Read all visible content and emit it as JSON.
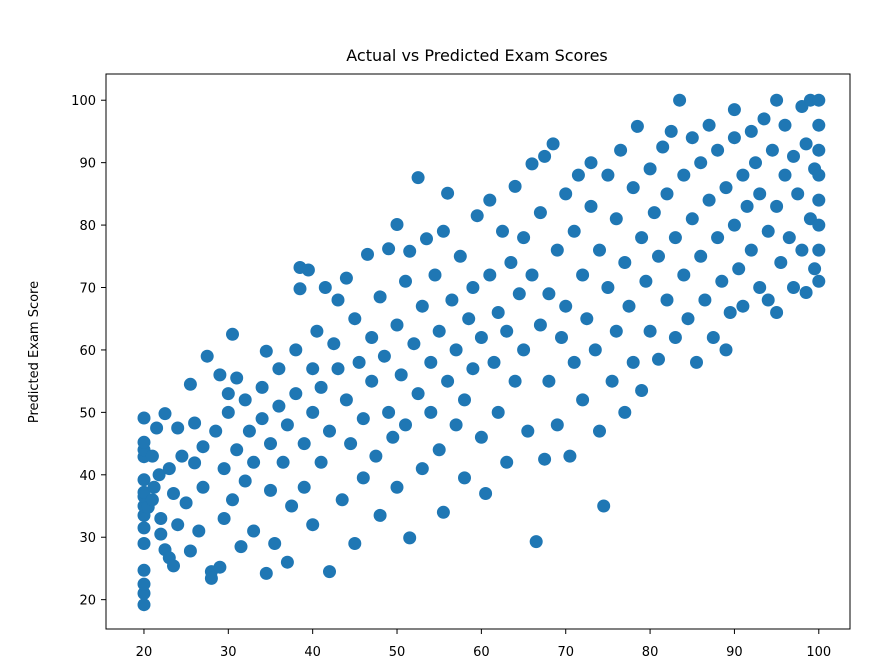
{
  "chart_data": {
    "type": "scatter",
    "title": "Actual vs Predicted Exam Scores",
    "xlabel": "",
    "ylabel": "Predicted Exam Score",
    "xlim": [
      15.5,
      103.7
    ],
    "ylim": [
      15.3,
      104.2
    ],
    "xticks": [
      20,
      30,
      40,
      50,
      60,
      70,
      80,
      90,
      100
    ],
    "yticks": [
      20,
      30,
      40,
      50,
      60,
      70,
      80,
      90,
      100
    ],
    "grid": false,
    "color": "#1f77b4",
    "series": [
      {
        "points": [
          [
            20,
            19.2
          ],
          [
            20,
            21.0
          ],
          [
            20,
            22.5
          ],
          [
            20,
            24.7
          ],
          [
            20,
            29.0
          ],
          [
            20,
            31.5
          ],
          [
            20,
            33.5
          ],
          [
            20,
            35.0
          ],
          [
            20,
            36.5
          ],
          [
            20,
            37.2
          ],
          [
            20,
            39.2
          ],
          [
            20,
            42.9
          ],
          [
            20,
            44.0
          ],
          [
            20,
            45.2
          ],
          [
            20,
            49.1
          ],
          [
            20.5,
            34.8
          ],
          [
            21,
            36.0
          ],
          [
            21,
            43.0
          ],
          [
            21.2,
            38.0
          ],
          [
            21.5,
            47.5
          ],
          [
            21.8,
            40.0
          ],
          [
            22,
            30.5
          ],
          [
            22,
            33.0
          ],
          [
            22.5,
            28.0
          ],
          [
            22.5,
            49.8
          ],
          [
            23,
            41.0
          ],
          [
            23,
            26.7
          ],
          [
            23.5,
            25.4
          ],
          [
            23.5,
            37.0
          ],
          [
            24,
            47.5
          ],
          [
            24,
            32.0
          ],
          [
            24.5,
            43.0
          ],
          [
            25,
            35.5
          ],
          [
            25.5,
            27.8
          ],
          [
            25.5,
            54.5
          ],
          [
            26,
            41.9
          ],
          [
            26,
            48.3
          ],
          [
            26.5,
            31.0
          ],
          [
            27,
            38.0
          ],
          [
            27,
            44.5
          ],
          [
            27.5,
            59.0
          ],
          [
            28,
            24.5
          ],
          [
            28,
            23.4
          ],
          [
            28.5,
            47.0
          ],
          [
            29,
            25.2
          ],
          [
            29,
            56.0
          ],
          [
            29.5,
            33.0
          ],
          [
            29.5,
            41.0
          ],
          [
            30,
            50.0
          ],
          [
            30,
            53.0
          ],
          [
            30.5,
            62.5
          ],
          [
            30.5,
            36.0
          ],
          [
            31,
            44.0
          ],
          [
            31,
            55.5
          ],
          [
            31.5,
            28.5
          ],
          [
            32,
            52.0
          ],
          [
            32,
            39.0
          ],
          [
            32.5,
            47.0
          ],
          [
            33,
            42.0
          ],
          [
            33,
            31.0
          ],
          [
            34,
            49.0
          ],
          [
            34,
            54.0
          ],
          [
            34.5,
            59.8
          ],
          [
            34.5,
            24.2
          ],
          [
            35,
            45.0
          ],
          [
            35,
            37.5
          ],
          [
            35.5,
            29.0
          ],
          [
            36,
            51.0
          ],
          [
            36,
            57.0
          ],
          [
            36.5,
            42.0
          ],
          [
            37,
            26.0
          ],
          [
            37,
            48.0
          ],
          [
            37.5,
            35.0
          ],
          [
            38,
            60.0
          ],
          [
            38,
            53.0
          ],
          [
            38.5,
            69.8
          ],
          [
            38.5,
            73.2
          ],
          [
            39,
            45.0
          ],
          [
            39,
            38.0
          ],
          [
            39.5,
            72.8
          ],
          [
            40,
            57.0
          ],
          [
            40,
            50.0
          ],
          [
            40,
            32.0
          ],
          [
            40.5,
            63.0
          ],
          [
            41,
            42.0
          ],
          [
            41,
            54.0
          ],
          [
            41.5,
            70.0
          ],
          [
            42,
            24.5
          ],
          [
            42,
            47.0
          ],
          [
            42.5,
            61.0
          ],
          [
            43,
            57.0
          ],
          [
            43,
            68.0
          ],
          [
            43.5,
            36.0
          ],
          [
            44,
            52.0
          ],
          [
            44,
            71.5
          ],
          [
            44.5,
            45.0
          ],
          [
            45,
            65.0
          ],
          [
            45,
            29.0
          ],
          [
            45.5,
            58.0
          ],
          [
            46,
            49.0
          ],
          [
            46,
            39.5
          ],
          [
            46.5,
            75.3
          ],
          [
            47,
            62.0
          ],
          [
            47,
            55.0
          ],
          [
            47.5,
            43.0
          ],
          [
            48,
            68.5
          ],
          [
            48,
            33.5
          ],
          [
            48.5,
            59.0
          ],
          [
            49,
            50.0
          ],
          [
            49,
            76.2
          ],
          [
            49.5,
            46.0
          ],
          [
            50,
            80.1
          ],
          [
            50,
            64.0
          ],
          [
            50,
            38.0
          ],
          [
            50.5,
            56.0
          ],
          [
            51,
            71.0
          ],
          [
            51,
            48.0
          ],
          [
            51.5,
            75.8
          ],
          [
            51.5,
            29.9
          ],
          [
            52,
            61.0
          ],
          [
            52.5,
            53.0
          ],
          [
            52.5,
            87.6
          ],
          [
            53,
            67.0
          ],
          [
            53,
            41.0
          ],
          [
            53.5,
            77.8
          ],
          [
            54,
            58.0
          ],
          [
            54,
            50.0
          ],
          [
            54.5,
            72.0
          ],
          [
            55,
            63.0
          ],
          [
            55,
            44.0
          ],
          [
            55.5,
            79.0
          ],
          [
            55.5,
            34.0
          ],
          [
            56,
            85.1
          ],
          [
            56,
            55.0
          ],
          [
            56.5,
            68.0
          ],
          [
            57,
            48.0
          ],
          [
            57,
            60.0
          ],
          [
            57.5,
            75.0
          ],
          [
            58,
            52.0
          ],
          [
            58,
            39.5
          ],
          [
            58.5,
            65.0
          ],
          [
            59,
            70.0
          ],
          [
            59,
            57.0
          ],
          [
            59.5,
            81.5
          ],
          [
            60,
            62.0
          ],
          [
            60,
            46.0
          ],
          [
            60.5,
            37.0
          ],
          [
            61,
            84.0
          ],
          [
            61,
            72.0
          ],
          [
            61.5,
            58.0
          ],
          [
            62,
            66.0
          ],
          [
            62,
            50.0
          ],
          [
            62.5,
            79.0
          ],
          [
            63,
            63.0
          ],
          [
            63,
            42.0
          ],
          [
            63.5,
            74.0
          ],
          [
            64,
            86.2
          ],
          [
            64,
            55.0
          ],
          [
            64.5,
            69.0
          ],
          [
            65,
            78.0
          ],
          [
            65,
            60.0
          ],
          [
            65.5,
            47.0
          ],
          [
            66,
            72.0
          ],
          [
            66,
            89.8
          ],
          [
            66.5,
            29.3
          ],
          [
            67,
            64.0
          ],
          [
            67,
            82.0
          ],
          [
            67.5,
            91.0
          ],
          [
            67.5,
            42.5
          ],
          [
            68,
            69.0
          ],
          [
            68,
            55.0
          ],
          [
            68.5,
            93.0
          ],
          [
            69,
            76.0
          ],
          [
            69,
            48.0
          ],
          [
            69.5,
            62.0
          ],
          [
            70,
            85.0
          ],
          [
            70,
            67.0
          ],
          [
            70.5,
            43.0
          ],
          [
            71,
            79.0
          ],
          [
            71,
            58.0
          ],
          [
            71.5,
            88.0
          ],
          [
            72,
            72.0
          ],
          [
            72,
            52.0
          ],
          [
            72.5,
            65.0
          ],
          [
            73,
            83.0
          ],
          [
            73,
            90.0
          ],
          [
            73.5,
            60.0
          ],
          [
            74,
            76.0
          ],
          [
            74,
            47.0
          ],
          [
            74.5,
            35.0
          ],
          [
            75,
            70.0
          ],
          [
            75,
            88.0
          ],
          [
            75.5,
            55.0
          ],
          [
            76,
            81.0
          ],
          [
            76,
            63.0
          ],
          [
            76.5,
            92.0
          ],
          [
            77,
            74.0
          ],
          [
            77,
            50.0
          ],
          [
            77.5,
            67.0
          ],
          [
            78,
            86.0
          ],
          [
            78,
            58.0
          ],
          [
            78.5,
            95.8
          ],
          [
            79,
            78.0
          ],
          [
            79,
            53.5
          ],
          [
            79.5,
            71.0
          ],
          [
            80,
            89.0
          ],
          [
            80,
            63.0
          ],
          [
            80.5,
            82.0
          ],
          [
            81,
            58.5
          ],
          [
            81,
            75.0
          ],
          [
            81.5,
            92.5
          ],
          [
            82,
            68.0
          ],
          [
            82,
            85.0
          ],
          [
            82.5,
            95.0
          ],
          [
            83,
            62.0
          ],
          [
            83,
            78.0
          ],
          [
            83.5,
            100.0
          ],
          [
            84,
            72.0
          ],
          [
            84,
            88.0
          ],
          [
            84.5,
            65.0
          ],
          [
            85,
            81.0
          ],
          [
            85,
            94.0
          ],
          [
            85.5,
            58.0
          ],
          [
            86,
            75.0
          ],
          [
            86,
            90.0
          ],
          [
            86.5,
            68.0
          ],
          [
            87,
            84.0
          ],
          [
            87,
            96.0
          ],
          [
            87.5,
            62.0
          ],
          [
            88,
            78.0
          ],
          [
            88,
            92.0
          ],
          [
            88.5,
            71.0
          ],
          [
            89,
            86.0
          ],
          [
            89,
            60.0
          ],
          [
            89.5,
            66.0
          ],
          [
            90,
            80.0
          ],
          [
            90,
            94.0
          ],
          [
            90,
            98.5
          ],
          [
            90.5,
            73.0
          ],
          [
            91,
            88.0
          ],
          [
            91,
            67.0
          ],
          [
            91.5,
            83.0
          ],
          [
            92,
            95.0
          ],
          [
            92,
            76.0
          ],
          [
            92.5,
            90.0
          ],
          [
            93,
            70.0
          ],
          [
            93,
            85.0
          ],
          [
            93.5,
            97.0
          ],
          [
            94,
            79.0
          ],
          [
            94,
            68.0
          ],
          [
            94.5,
            92.0
          ],
          [
            95,
            100.0
          ],
          [
            95,
            83.0
          ],
          [
            95,
            66.0
          ],
          [
            95.5,
            74.0
          ],
          [
            96,
            88.0
          ],
          [
            96,
            96.0
          ],
          [
            96.5,
            78.0
          ],
          [
            97,
            91.0
          ],
          [
            97,
            70.0
          ],
          [
            97.5,
            85.0
          ],
          [
            98,
            99.0
          ],
          [
            98,
            76.0
          ],
          [
            98.5,
            93.0
          ],
          [
            98.5,
            69.2
          ],
          [
            99,
            81.0
          ],
          [
            99,
            100.0
          ],
          [
            99.5,
            89.0
          ],
          [
            99.5,
            73.0
          ],
          [
            100,
            71.0
          ],
          [
            100,
            76.0
          ],
          [
            100,
            80.0
          ],
          [
            100,
            84.0
          ],
          [
            100,
            88.0
          ],
          [
            100,
            92.0
          ],
          [
            100,
            96.0
          ],
          [
            100,
            100.0
          ]
        ]
      }
    ]
  }
}
